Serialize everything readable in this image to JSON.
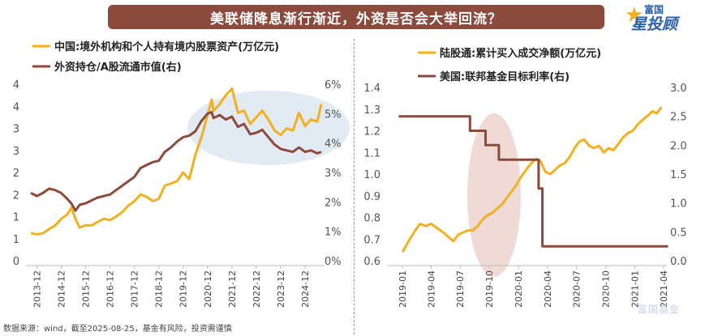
{
  "title": "美联储降息渐行渐近，外资是否会大举回流？",
  "logo": {
    "line1": "富国",
    "line2": "星投顾"
  },
  "footer": "数据来源：wind，截至2025-08-25，基金有风险，投资需谨慎",
  "watermark": "富国基金",
  "colors": {
    "title_bg": "#8b4a3c",
    "gold": "#f2b01e",
    "brown": "#8b4a3c",
    "highlight_blue": "#dde6f1",
    "highlight_pink": "#ecd4cf"
  },
  "chart_data": [
    {
      "type": "line",
      "x_type": "date",
      "xlim": [
        "2013-09",
        "2025-08"
      ],
      "x_ticks": [
        "2013-12",
        "2014-12",
        "2015-12",
        "2016-12",
        "2017-12",
        "2018-12",
        "2019-12",
        "2020-12",
        "2021-12",
        "2022-12",
        "2023-12",
        "2024-12"
      ],
      "y_left": {
        "ticks": [
          "0",
          "1",
          "1",
          "2",
          "2",
          "3",
          "3",
          "4",
          "4"
        ],
        "lim": [
          0,
          4
        ]
      },
      "y_right": {
        "ticks": [
          "0%",
          "1%",
          "2%",
          "3%",
          "4%",
          "5%",
          "6%"
        ],
        "lim": [
          0,
          6
        ]
      },
      "series": [
        {
          "name": "中国:境外机构和个人持有境内股票资产(万亿元)",
          "axis": "left",
          "color": "#f2b01e",
          "points": [
            [
              "2013-09",
              0.62
            ],
            [
              "2013-12",
              0.6
            ],
            [
              "2014-03",
              0.62
            ],
            [
              "2014-06",
              0.72
            ],
            [
              "2014-09",
              0.8
            ],
            [
              "2014-12",
              0.95
            ],
            [
              "2015-03",
              1.05
            ],
            [
              "2015-05",
              1.2
            ],
            [
              "2015-07",
              0.95
            ],
            [
              "2015-09",
              0.75
            ],
            [
              "2015-12",
              0.8
            ],
            [
              "2016-03",
              0.8
            ],
            [
              "2016-06",
              0.88
            ],
            [
              "2016-09",
              0.95
            ],
            [
              "2016-12",
              0.92
            ],
            [
              "2017-03",
              1.0
            ],
            [
              "2017-06",
              1.1
            ],
            [
              "2017-09",
              1.25
            ],
            [
              "2017-12",
              1.35
            ],
            [
              "2018-03",
              1.5
            ],
            [
              "2018-06",
              1.45
            ],
            [
              "2018-09",
              1.35
            ],
            [
              "2018-12",
              1.4
            ],
            [
              "2019-03",
              1.7
            ],
            [
              "2019-06",
              1.75
            ],
            [
              "2019-09",
              1.8
            ],
            [
              "2019-12",
              2.0
            ],
            [
              "2020-03",
              1.85
            ],
            [
              "2020-06",
              2.4
            ],
            [
              "2020-09",
              2.8
            ],
            [
              "2020-12",
              3.3
            ],
            [
              "2021-02",
              3.65
            ],
            [
              "2021-03",
              3.4
            ],
            [
              "2021-06",
              3.55
            ],
            [
              "2021-09",
              3.75
            ],
            [
              "2021-12",
              3.9
            ],
            [
              "2022-03",
              3.35
            ],
            [
              "2022-06",
              3.4
            ],
            [
              "2022-09",
              3.1
            ],
            [
              "2022-12",
              3.25
            ],
            [
              "2023-03",
              3.4
            ],
            [
              "2023-06",
              3.2
            ],
            [
              "2023-09",
              2.95
            ],
            [
              "2023-12",
              2.85
            ],
            [
              "2024-03",
              3.0
            ],
            [
              "2024-06",
              2.95
            ],
            [
              "2024-09",
              3.35
            ],
            [
              "2024-12",
              3.05
            ],
            [
              "2025-03",
              3.2
            ],
            [
              "2025-06",
              3.15
            ],
            [
              "2025-08",
              3.55
            ]
          ]
        },
        {
          "name": "外资持仓/A股流通市值(右)",
          "axis": "right",
          "color": "#8b4a3c",
          "points": [
            [
              "2013-09",
              2.3
            ],
            [
              "2013-12",
              2.2
            ],
            [
              "2014-03",
              2.3
            ],
            [
              "2014-06",
              2.45
            ],
            [
              "2014-09",
              2.4
            ],
            [
              "2014-12",
              2.3
            ],
            [
              "2015-03",
              2.1
            ],
            [
              "2015-05",
              1.95
            ],
            [
              "2015-07",
              1.7
            ],
            [
              "2015-09",
              1.9
            ],
            [
              "2015-12",
              1.95
            ],
            [
              "2016-03",
              2.05
            ],
            [
              "2016-06",
              2.15
            ],
            [
              "2016-09",
              2.2
            ],
            [
              "2016-12",
              2.25
            ],
            [
              "2017-03",
              2.4
            ],
            [
              "2017-06",
              2.55
            ],
            [
              "2017-09",
              2.7
            ],
            [
              "2017-12",
              2.85
            ],
            [
              "2018-03",
              3.15
            ],
            [
              "2018-06",
              3.25
            ],
            [
              "2018-09",
              3.35
            ],
            [
              "2018-12",
              3.4
            ],
            [
              "2019-03",
              3.7
            ],
            [
              "2019-06",
              3.85
            ],
            [
              "2019-09",
              4.05
            ],
            [
              "2019-12",
              4.2
            ],
            [
              "2020-03",
              4.25
            ],
            [
              "2020-06",
              4.4
            ],
            [
              "2020-09",
              4.75
            ],
            [
              "2020-12",
              5.0
            ],
            [
              "2021-02",
              5.05
            ],
            [
              "2021-03",
              4.85
            ],
            [
              "2021-06",
              4.95
            ],
            [
              "2021-09",
              4.8
            ],
            [
              "2021-12",
              4.9
            ],
            [
              "2022-03",
              4.55
            ],
            [
              "2022-06",
              4.65
            ],
            [
              "2022-09",
              4.3
            ],
            [
              "2022-12",
              4.35
            ],
            [
              "2023-03",
              4.45
            ],
            [
              "2023-06",
              4.2
            ],
            [
              "2023-09",
              3.95
            ],
            [
              "2023-12",
              3.8
            ],
            [
              "2024-03",
              3.75
            ],
            [
              "2024-06",
              3.7
            ],
            [
              "2024-09",
              3.85
            ],
            [
              "2024-12",
              3.7
            ],
            [
              "2025-03",
              3.75
            ],
            [
              "2025-06",
              3.65
            ],
            [
              "2025-08",
              3.7
            ]
          ]
        }
      ]
    },
    {
      "type": "line",
      "x_type": "date",
      "xlim": [
        "2018-12",
        "2021-04"
      ],
      "x_ticks": [
        "2019-01",
        "2019-04",
        "2019-07",
        "2019-10",
        "2020-01",
        "2020-04",
        "2020-07",
        "2020-10",
        "2021-01",
        "2021-04"
      ],
      "y_left": {
        "ticks": [
          "0.6",
          "0.7",
          "0.8",
          "0.9",
          "1.0",
          "1.1",
          "1.2",
          "1.3",
          "1.4"
        ],
        "lim": [
          0.6,
          1.4
        ]
      },
      "y_right": {
        "ticks": [
          "0.0",
          "0.5",
          "1.0",
          "1.5",
          "2.0",
          "2.5",
          "3.0"
        ],
        "lim": [
          0.0,
          3.0
        ]
      },
      "series": [
        {
          "name": "陆股通:累计买入成交净额(万亿元)",
          "axis": "left",
          "color": "#f2b01e",
          "points": [
            [
              "2019-01-01",
              0.64
            ],
            [
              "2019-01-20",
              0.69
            ],
            [
              "2019-02-10",
              0.74
            ],
            [
              "2019-02-25",
              0.77
            ],
            [
              "2019-03-15",
              0.76
            ],
            [
              "2019-04-01",
              0.77
            ],
            [
              "2019-04-20",
              0.75
            ],
            [
              "2019-05-10",
              0.73
            ],
            [
              "2019-05-25",
              0.71
            ],
            [
              "2019-06-10",
              0.69
            ],
            [
              "2019-06-25",
              0.72
            ],
            [
              "2019-07-10",
              0.73
            ],
            [
              "2019-07-25",
              0.74
            ],
            [
              "2019-08-10",
              0.74
            ],
            [
              "2019-08-25",
              0.76
            ],
            [
              "2019-09-10",
              0.79
            ],
            [
              "2019-09-25",
              0.81
            ],
            [
              "2019-10-10",
              0.82
            ],
            [
              "2019-10-25",
              0.84
            ],
            [
              "2019-11-10",
              0.86
            ],
            [
              "2019-11-25",
              0.89
            ],
            [
              "2019-12-10",
              0.92
            ],
            [
              "2019-12-25",
              0.95
            ],
            [
              "2020-01-10",
              0.99
            ],
            [
              "2020-01-25",
              1.02
            ],
            [
              "2020-02-10",
              1.05
            ],
            [
              "2020-02-25",
              1.07
            ],
            [
              "2020-03-10",
              1.06
            ],
            [
              "2020-03-25",
              1.01
            ],
            [
              "2020-04-10",
              1.0
            ],
            [
              "2020-04-25",
              1.02
            ],
            [
              "2020-05-10",
              1.04
            ],
            [
              "2020-05-25",
              1.05
            ],
            [
              "2020-06-10",
              1.08
            ],
            [
              "2020-06-25",
              1.12
            ],
            [
              "2020-07-10",
              1.15
            ],
            [
              "2020-07-25",
              1.16
            ],
            [
              "2020-08-10",
              1.13
            ],
            [
              "2020-08-25",
              1.12
            ],
            [
              "2020-09-10",
              1.13
            ],
            [
              "2020-09-25",
              1.1
            ],
            [
              "2020-10-10",
              1.12
            ],
            [
              "2020-10-25",
              1.11
            ],
            [
              "2020-11-10",
              1.14
            ],
            [
              "2020-11-25",
              1.17
            ],
            [
              "2020-12-10",
              1.19
            ],
            [
              "2020-12-25",
              1.2
            ],
            [
              "2021-01-10",
              1.23
            ],
            [
              "2021-01-25",
              1.25
            ],
            [
              "2021-02-10",
              1.27
            ],
            [
              "2021-02-25",
              1.29
            ],
            [
              "2021-03-10",
              1.28
            ],
            [
              "2021-03-25",
              1.31
            ]
          ]
        },
        {
          "name": "美国:联邦基金目标利率(右)",
          "axis": "right",
          "color": "#8b4a3c",
          "step": true,
          "points": [
            [
              "2018-12-20",
              2.5
            ],
            [
              "2019-08-01",
              2.25
            ],
            [
              "2019-09-19",
              2.0
            ],
            [
              "2019-10-31",
              1.75
            ],
            [
              "2020-03-04",
              1.25
            ],
            [
              "2020-03-16",
              0.25
            ],
            [
              "2021-04-15",
              0.25
            ]
          ]
        }
      ]
    }
  ]
}
